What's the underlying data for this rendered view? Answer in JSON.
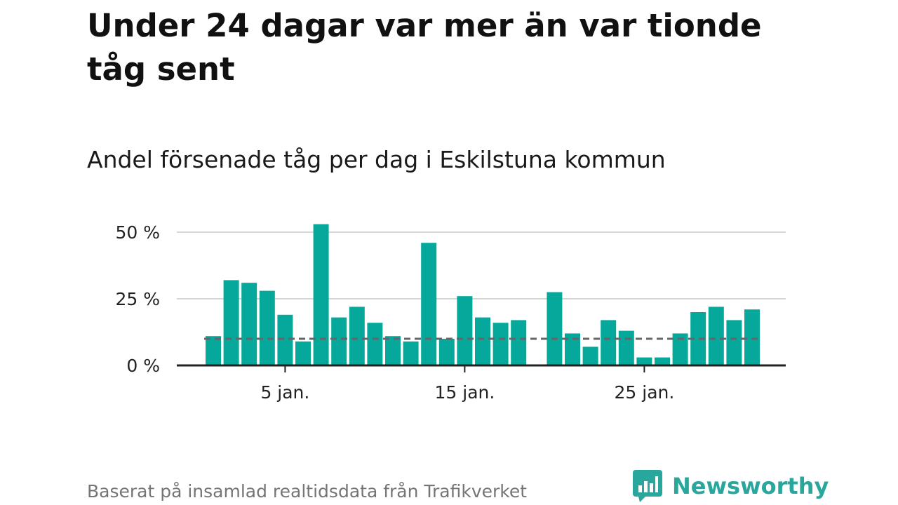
{
  "title": "Under 24 dagar var mer än var tionde tåg sent",
  "subtitle": "Andel försenade tåg per dag i Eskilstuna kommun",
  "footer": "Baserat på insamlad realtidsdata från Trafikverket",
  "brand": {
    "name": "Newsworthy",
    "color": "#2aa79d"
  },
  "chart_data": {
    "type": "bar",
    "x": [
      1,
      2,
      3,
      4,
      5,
      6,
      7,
      8,
      9,
      10,
      11,
      12,
      13,
      14,
      15,
      16,
      17,
      18,
      19,
      20,
      21,
      22,
      23,
      24,
      25,
      26,
      27,
      28,
      29,
      30,
      31
    ],
    "values": [
      11,
      32,
      31,
      28,
      19,
      9,
      53,
      18,
      22,
      16,
      11,
      9,
      46,
      10,
      26,
      18,
      16,
      17,
      null,
      27.5,
      12,
      7,
      17,
      13,
      3,
      3,
      12,
      20,
      22,
      17,
      21
    ],
    "ylim": [
      0,
      55
    ],
    "yticks": [
      0,
      25,
      50
    ],
    "ytick_labels": [
      "0 %",
      "25 %",
      "50 %"
    ],
    "xticks": [
      5,
      15,
      25
    ],
    "xtick_labels": [
      "5 jan.",
      "15 jan.",
      "25 jan."
    ],
    "reference_line": 10,
    "bar_color": "#05a89a",
    "reference_color": "#666666",
    "grid": true
  }
}
